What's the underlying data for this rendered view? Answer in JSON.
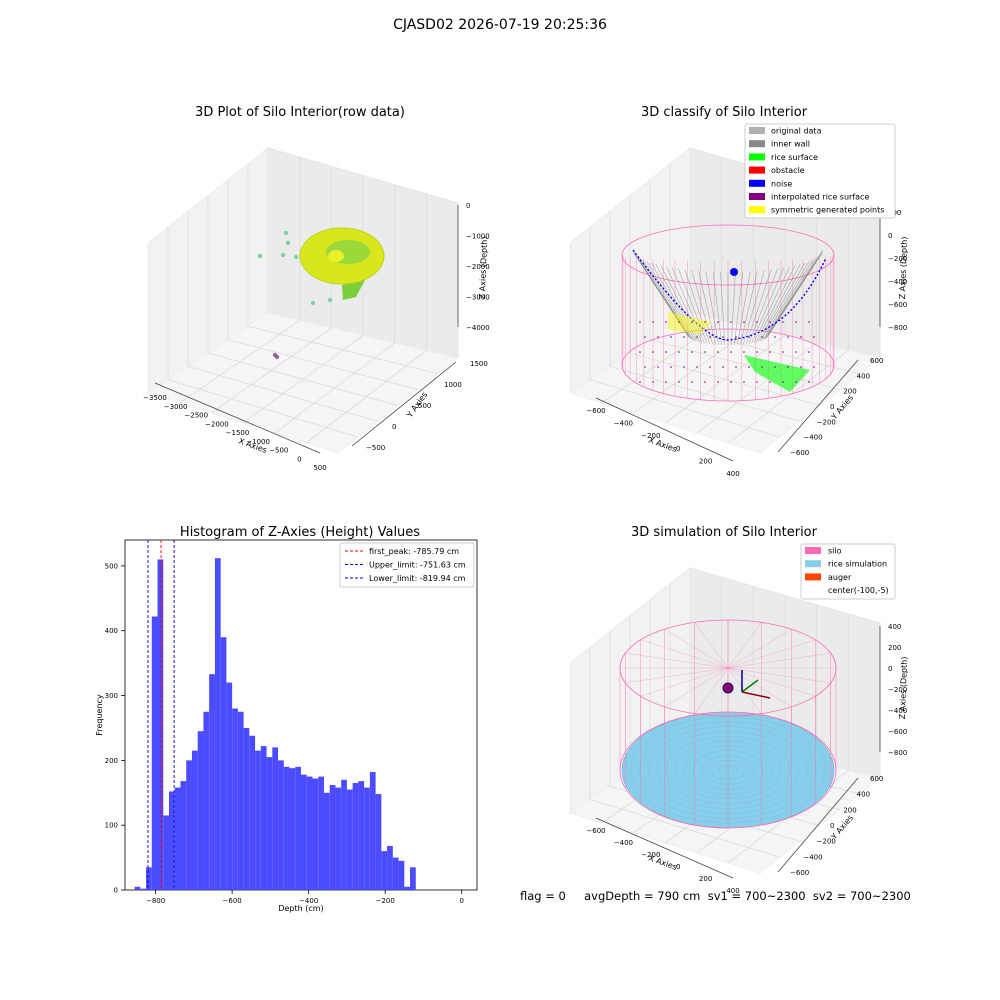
{
  "suptitle": "CJASD02 2026-07-19 20:25:36",
  "status_line": "flag = 0     avgDepth = 790 cm  sv1 = 700~2300  sv2 = 700~2300",
  "colors": {
    "hist_bar": "#4b4bff",
    "first_peak": "#ff0000",
    "limit_line": "#0000cc",
    "silo": "#ff69b4",
    "rice_sim": "#87ceeb",
    "auger": "#ff4500",
    "inner_wall": "#888888",
    "noise": "#0000ff",
    "rice_surface": "#00ff00",
    "obstacle": "#ff0000",
    "interp_surface": "#800080",
    "symmetric": "#ffff00",
    "original": "#b0b0b0"
  },
  "chart_data": [
    {
      "type": "scatter3d",
      "title": "3D Plot of Silo Interior(row data)",
      "xlabel": "X Axies",
      "ylabel": "Y Axies",
      "zlabel": "Z Axies (Depth)",
      "xticks": [
        "−3500",
        "−3000",
        "−2500",
        "−2000",
        "−1500",
        "−1000",
        "−500",
        "0",
        "500"
      ],
      "yticks": [
        "−500",
        "0",
        "500",
        "1000",
        "1500"
      ],
      "zticks": [
        "0",
        "−1000",
        "−2000",
        "−3000",
        "−4000"
      ]
    },
    {
      "type": "scatter3d",
      "title": "3D classify of Silo Interior",
      "xlabel": "X Axies",
      "ylabel": "Y Axies",
      "zlabel": "Z Axies (Depth)",
      "xticks": [
        "−600",
        "−400",
        "−200",
        "0",
        "200",
        "400"
      ],
      "yticks": [
        "−600",
        "−400",
        "−200",
        "0",
        "200",
        "400",
        "600"
      ],
      "zticks": [
        "200",
        "0",
        "−200",
        "−400",
        "−600",
        "−800"
      ],
      "legend": [
        "original data",
        "inner wall",
        "rice surface",
        "obstacle",
        "noise",
        "interpolated rice surface",
        "symmetric generated points"
      ]
    },
    {
      "type": "bar",
      "title": "Histogram of Z-Axies (Height) Values",
      "xlabel": "Depth (cm)",
      "ylabel": "Frequency",
      "xlim": [
        -880,
        40
      ],
      "ylim": [
        0,
        540
      ],
      "xticks": [
        -800,
        -600,
        -400,
        -200,
        0
      ],
      "yticks": [
        0,
        100,
        200,
        300,
        400,
        500
      ],
      "bin_start": -855,
      "bin_width": 15,
      "values": [
        5,
        2,
        35,
        422,
        510,
        115,
        152,
        158,
        168,
        200,
        215,
        245,
        275,
        333,
        512,
        390,
        320,
        280,
        275,
        250,
        238,
        215,
        222,
        205,
        220,
        200,
        190,
        188,
        190,
        178,
        175,
        172,
        175,
        150,
        162,
        158,
        170,
        155,
        165,
        168,
        158,
        182,
        148,
        60,
        68,
        50,
        45,
        5,
        35
      ],
      "vlines": [
        {
          "label": "first_peak: -785.79 cm",
          "x": -785.79,
          "color": "#ff0000"
        },
        {
          "label": "Upper_limit: -751.63 cm",
          "x": -751.63,
          "color": "#0000cc"
        },
        {
          "label": "Lower_limit: -819.94 cm",
          "x": -819.94,
          "color": "#0000cc"
        }
      ],
      "legend_loc": "upper right"
    },
    {
      "type": "surface3d",
      "title": "3D simulation of Silo Interior",
      "xlabel": "X Axies",
      "ylabel": "Y Axies",
      "zlabel": "Z Axies (Depth)",
      "xticks": [
        "−600",
        "−400",
        "−200",
        "0",
        "200",
        "400"
      ],
      "yticks": [
        "−600",
        "−400",
        "−200",
        "0",
        "200",
        "400",
        "600"
      ],
      "zticks": [
        "400",
        "200",
        "0",
        "−200",
        "−400",
        "−600",
        "−800"
      ],
      "legend": [
        "silo",
        "rice simulation",
        "auger",
        "center(-100,-5)"
      ]
    }
  ]
}
